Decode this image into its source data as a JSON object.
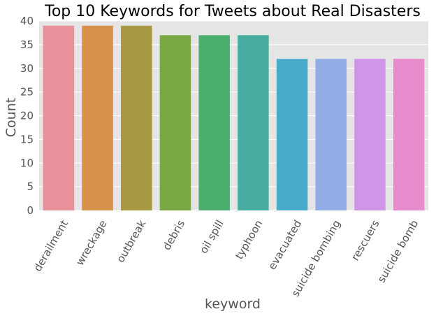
{
  "chart_data": {
    "type": "bar",
    "title": "Top 10 Keywords for Tweets about Real Disasters",
    "xlabel": "keyword",
    "ylabel": "Count",
    "categories": [
      "derailment",
      "wreckage",
      "outbreak",
      "debris",
      "oil spill",
      "typhoon",
      "evacuated",
      "suicide bombing",
      "rescuers",
      "suicide bomb"
    ],
    "values": [
      39,
      39,
      39,
      37,
      37,
      37,
      32,
      32,
      32,
      32
    ],
    "colors": [
      "#e8919b",
      "#d6924a",
      "#a89a42",
      "#7aa844",
      "#4cae6e",
      "#49aca0",
      "#4aaac9",
      "#92ace6",
      "#cf96e8",
      "#e88bcc"
    ],
    "ylim": [
      0,
      40
    ],
    "yticks": [
      0,
      5,
      10,
      15,
      20,
      25,
      30,
      35,
      40
    ],
    "grid": true,
    "background": "#e5e5e5"
  }
}
